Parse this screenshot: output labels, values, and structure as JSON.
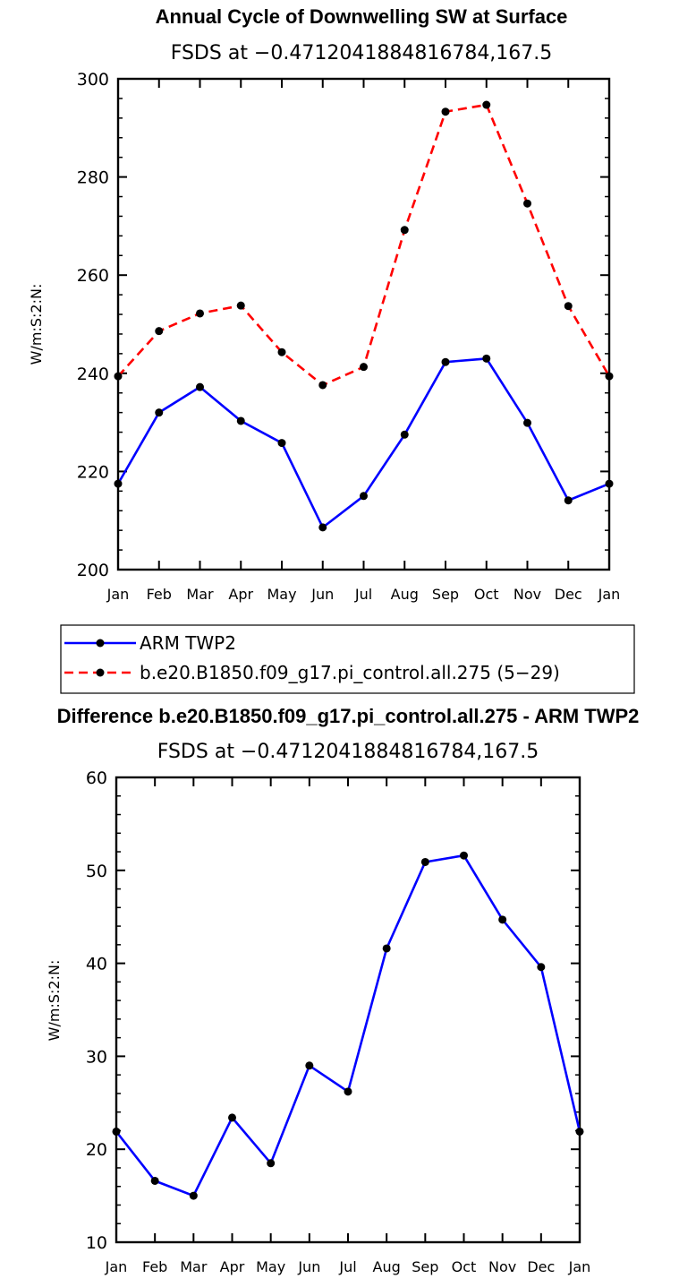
{
  "chart_data": [
    {
      "type": "line",
      "title": "Annual Cycle of Downwelling SW at Surface",
      "subtitle": "FSDS at −0.4712041884816784,167.5",
      "ylabel": "W/m:S:2:N:",
      "ylim": [
        200,
        300
      ],
      "yticks": [
        "200",
        "220",
        "240",
        "260",
        "280",
        "300"
      ],
      "categories": [
        "Jan",
        "Feb",
        "Mar",
        "Apr",
        "May",
        "Jun",
        "Jul",
        "Aug",
        "Sep",
        "Oct",
        "Nov",
        "Dec",
        "Jan"
      ],
      "series": [
        {
          "name": "ARM TWP2",
          "color": "#0000ff",
          "dash": "solid",
          "values": [
            217.5,
            232.0,
            237.2,
            230.3,
            225.8,
            208.6,
            215.0,
            227.5,
            242.3,
            243.0,
            229.9,
            214.1,
            217.5
          ]
        },
        {
          "name": "b.e20.B1850.f09_g17.pi_control.all.275 (5−29)",
          "color": "#ff0000",
          "dash": "dashed",
          "values": [
            239.4,
            248.6,
            252.2,
            253.8,
            244.3,
            237.6,
            241.3,
            269.2,
            293.3,
            294.7,
            274.6,
            253.7,
            239.4
          ]
        }
      ]
    },
    {
      "type": "line",
      "title": "Difference b.e20.B1850.f09_g17.pi_control.all.275 - ARM TWP2",
      "subtitle": "FSDS at −0.4712041884816784,167.5",
      "ylabel": "W/m:S:2:N:",
      "ylim": [
        10,
        60
      ],
      "yticks": [
        "10",
        "20",
        "30",
        "40",
        "50",
        "60"
      ],
      "categories": [
        "Jan",
        "Feb",
        "Mar",
        "Apr",
        "May",
        "Jun",
        "Jul",
        "Aug",
        "Sep",
        "Oct",
        "Nov",
        "Dec",
        "Jan"
      ],
      "series": [
        {
          "color": "#0000ff",
          "dash": "solid",
          "values": [
            21.9,
            16.6,
            15.0,
            23.4,
            18.5,
            29.0,
            26.2,
            41.6,
            50.9,
            51.6,
            44.7,
            39.6,
            21.9
          ]
        }
      ]
    }
  ]
}
